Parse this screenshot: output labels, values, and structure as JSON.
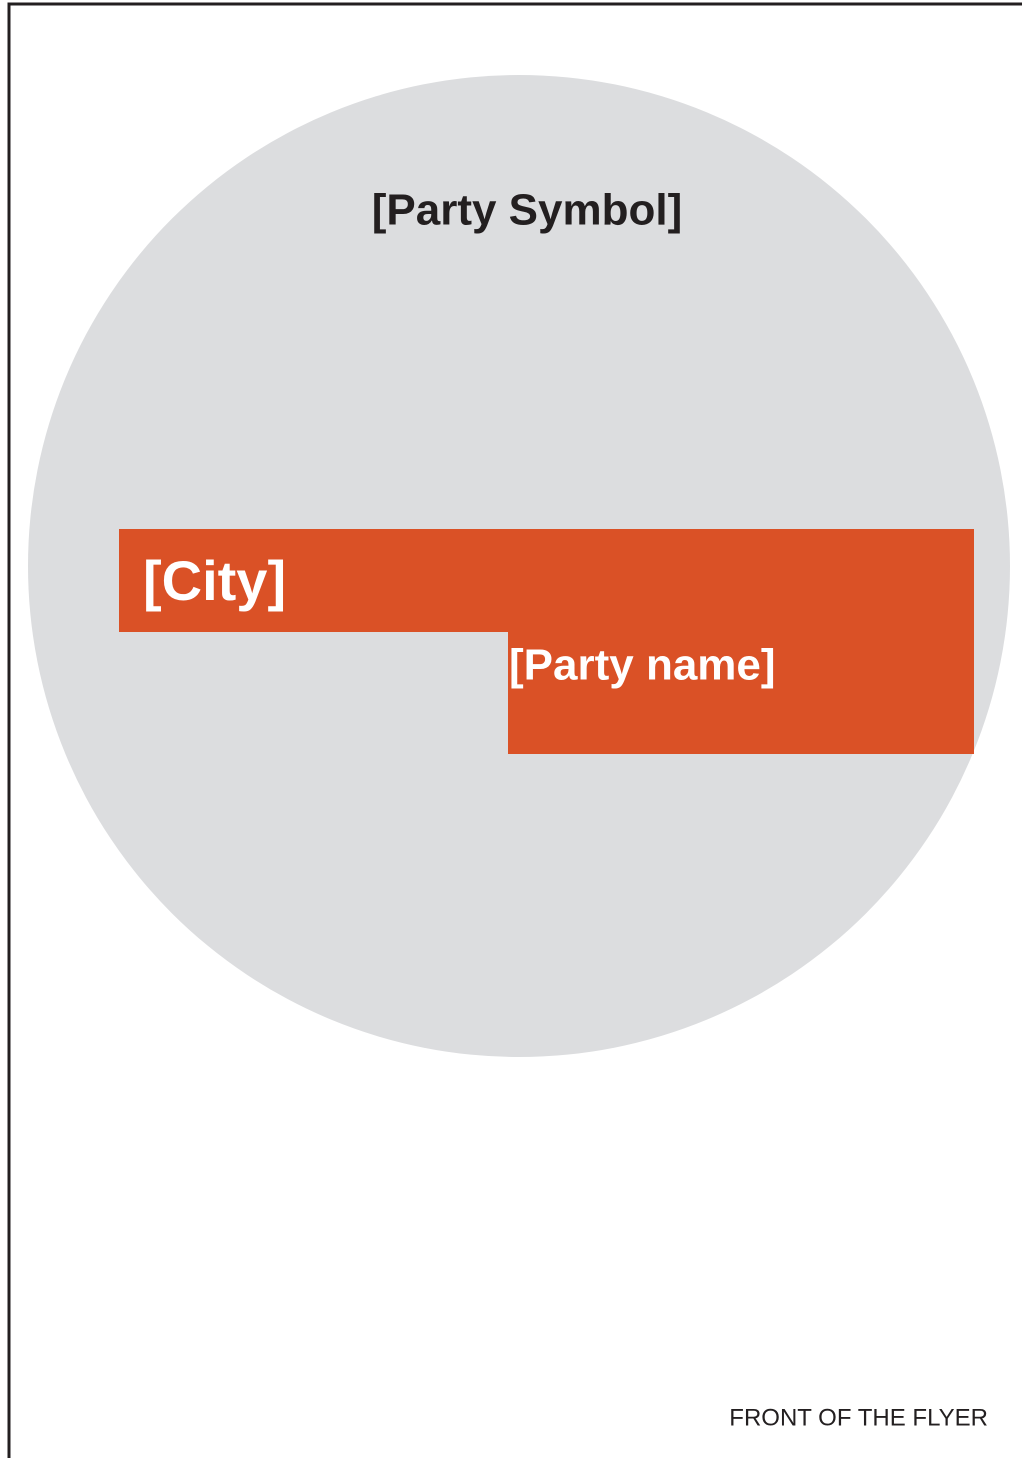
{
  "symbol": "[Party Symbol]",
  "city": "[City]",
  "party_name": "[Party name]",
  "footer": "FRONT OF THE FLYER"
}
